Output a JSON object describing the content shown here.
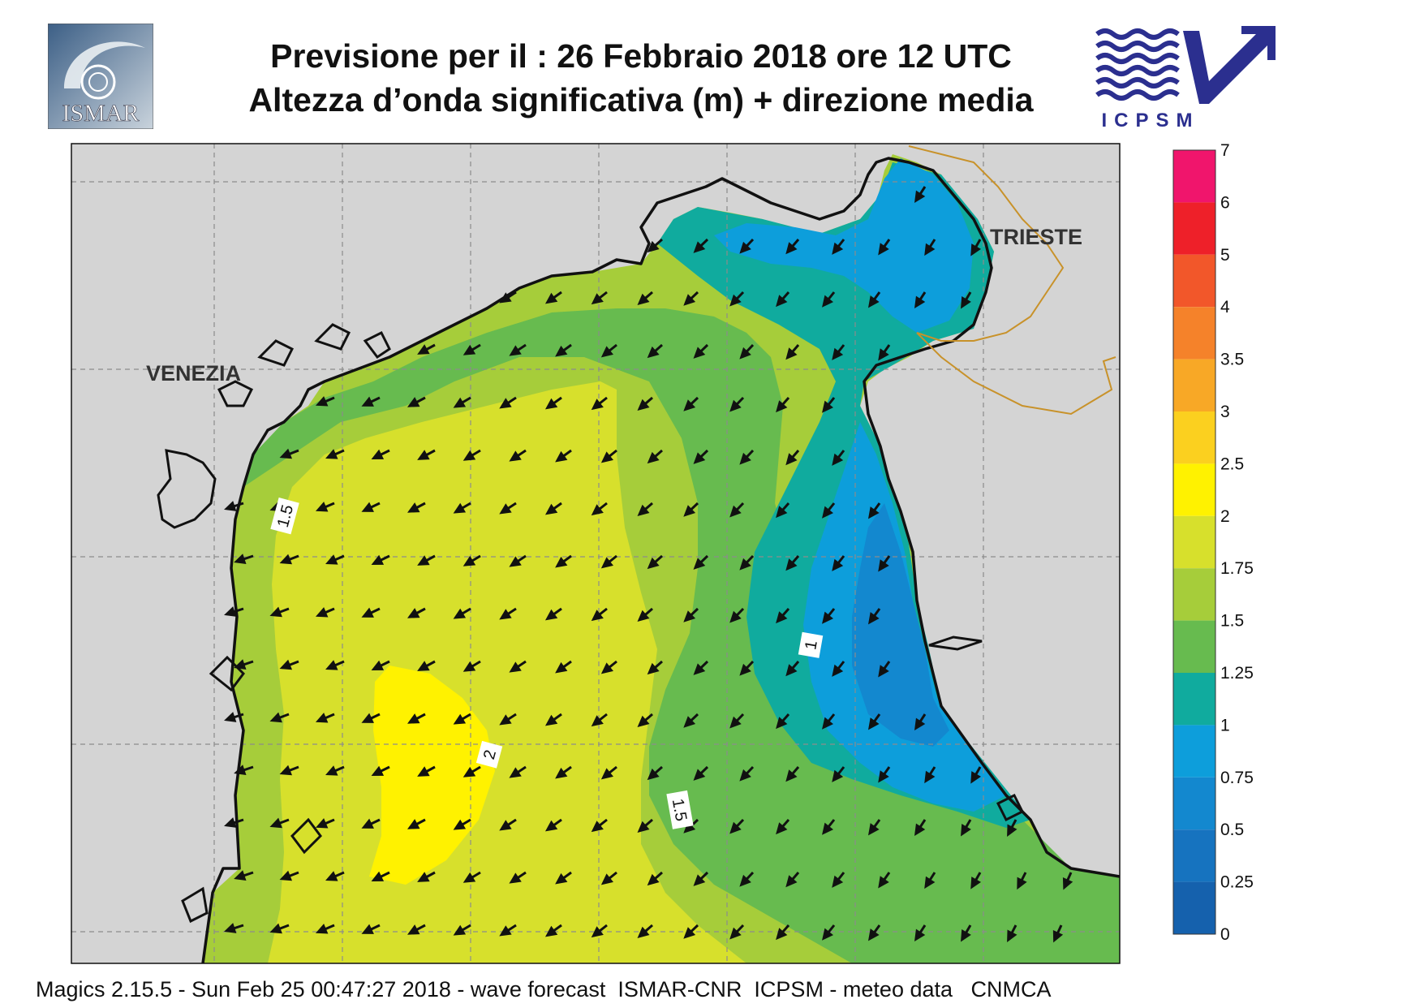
{
  "header": {
    "title_line1": "Previsione per il  :  26  Febbraio 2018   ore 12 UTC",
    "title_line2": "Altezza d’onda significativa (m) + direzione media"
  },
  "logos": {
    "left_text": "ISMAR",
    "right_text": "ICPSM"
  },
  "map": {
    "place_labels": [
      "VENEZIA",
      "TRIESTE"
    ],
    "contour_labels": [
      "1.5",
      "1",
      "2",
      "1.5"
    ],
    "arrow_direction": "towards south-west",
    "land_color": "#d4d4d4",
    "coast_color": "#111111",
    "border_color": "#c8922a",
    "grid": true
  },
  "legend": {
    "labels": [
      "7",
      "6",
      "5",
      "4",
      "3.5",
      "3",
      "2.5",
      "2",
      "1.75",
      "1.5",
      "1.25",
      "1",
      "0.75",
      "0.5",
      "0.25",
      "0"
    ],
    "colors": [
      "#f0156c",
      "#ee2029",
      "#f2572a",
      "#f5822a",
      "#f8a826",
      "#fbd01f",
      "#fff200",
      "#d7e02c",
      "#a6cd3a",
      "#67bb4f",
      "#10ab9e",
      "#0d9edb",
      "#1388cf",
      "#1673bf",
      "#1561ad"
    ]
  },
  "footer": {
    "text": "Magics 2.15.5 - Sun Feb 25 00:47:27 2018 - wave forecast  ISMAR-CNR  ICPSM - meteo data   CNMCA"
  }
}
